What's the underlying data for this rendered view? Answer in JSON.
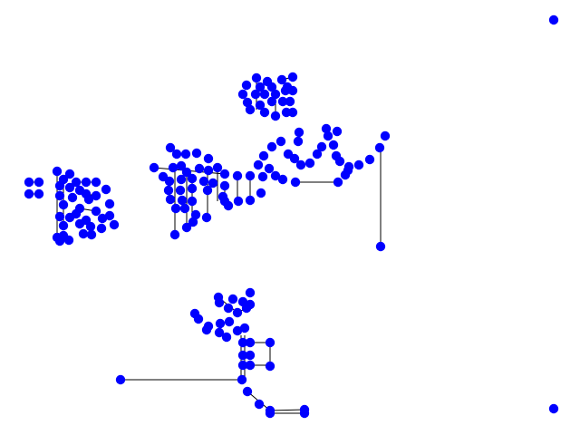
{
  "graph": {
    "node_color": "#0000ff",
    "edge_color": "#000000",
    "labels_shown": false,
    "axes_shown": false
  }
}
